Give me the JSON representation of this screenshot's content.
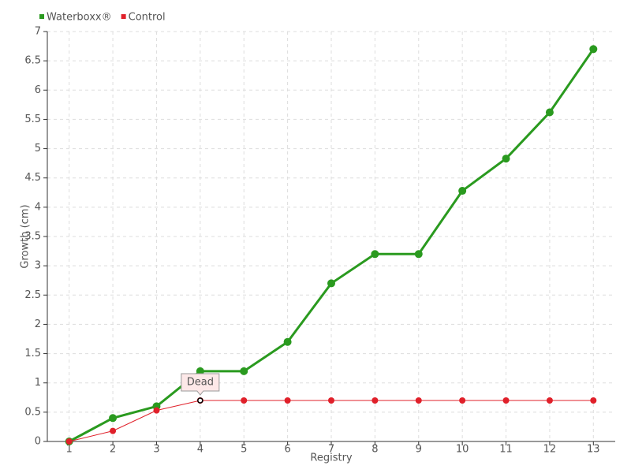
{
  "chart_data": {
    "type": "line",
    "x": [
      1,
      2,
      3,
      4,
      5,
      6,
      7,
      8,
      9,
      10,
      11,
      12,
      13
    ],
    "xlabel": "Registry",
    "ylabel": "Growth (cm)",
    "xlim": [
      0.5,
      13.5
    ],
    "xticks": [
      1,
      2,
      3,
      4,
      5,
      6,
      7,
      8,
      9,
      10,
      11,
      12,
      13
    ],
    "ylim": [
      0,
      7
    ],
    "yticks": [
      0,
      0.5,
      1,
      1.5,
      2,
      2.5,
      3,
      3.5,
      4,
      4.5,
      5,
      5.5,
      6,
      6.5,
      7
    ],
    "grid": true,
    "legend": "top-left",
    "series": [
      {
        "name": "Waterboxx®",
        "color": "#2a9a1f",
        "values": [
          0,
          0.4,
          0.6,
          1.2,
          1.2,
          1.7,
          2.7,
          3.2,
          3.2,
          4.28,
          4.83,
          5.62,
          6.7
        ]
      },
      {
        "name": "Control",
        "color": "#e0202a",
        "values": [
          0,
          0.18,
          0.53,
          0.7,
          0.7,
          0.7,
          0.7,
          0.7,
          0.7,
          0.7,
          0.7,
          0.7,
          0.7
        ]
      }
    ],
    "annotations": [
      {
        "text": "Dead",
        "x": 4,
        "y": 0.7
      }
    ]
  }
}
